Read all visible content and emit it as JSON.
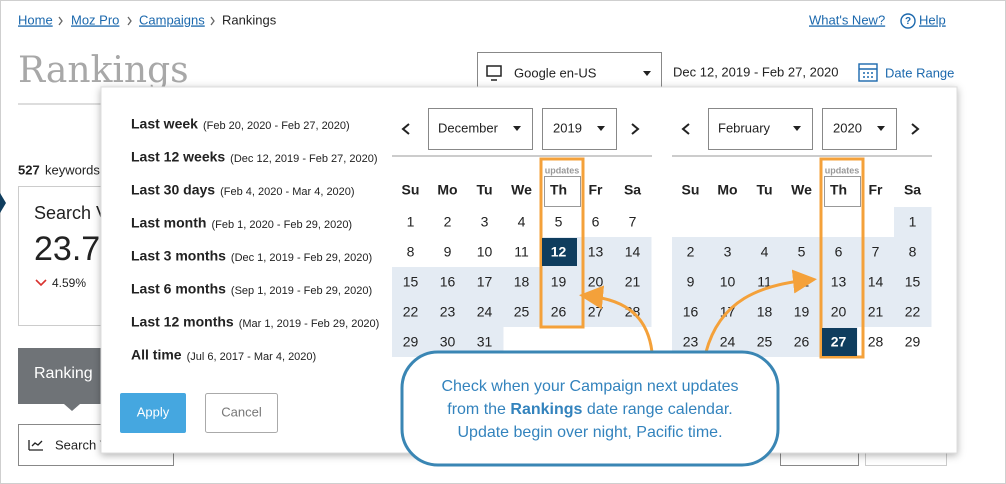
{
  "breadcrumb": [
    "Home",
    "Moz Pro",
    "Campaigns",
    "Rankings"
  ],
  "header_links": {
    "whats_new": "What's New?",
    "help": "Help"
  },
  "page_title": "Rankings",
  "toolbar": {
    "engine": "Google en-US",
    "date_range": "Dec 12, 2019 - Feb 27, 2020",
    "date_range_button": "Date Range"
  },
  "background": {
    "keywords_count": "527",
    "keywords_label": "keywords",
    "metric_card": {
      "title": "Search V",
      "value": "23.7",
      "change": "4.59%"
    },
    "tab": "Ranking",
    "button": "Search V"
  },
  "date_picker": {
    "presets": [
      {
        "name": "Last week",
        "range": "(Feb 20, 2020 - Feb 27, 2020)"
      },
      {
        "name": "Last 12 weeks",
        "range": "(Dec 12, 2019 - Feb 27, 2020)"
      },
      {
        "name": "Last 30 days",
        "range": "(Feb 4, 2020 - Mar 4, 2020)"
      },
      {
        "name": "Last month",
        "range": "(Feb 1, 2020 - Feb 29, 2020)"
      },
      {
        "name": "Last 3 months",
        "range": "(Dec 1, 2019 - Feb 29, 2020)"
      },
      {
        "name": "Last 6 months",
        "range": "(Sep 1, 2019 - Feb 29, 2020)"
      },
      {
        "name": "Last 12 months",
        "range": "(Mar 1, 2019 - Feb 29, 2020)"
      },
      {
        "name": "All time",
        "range": "(Jul 6, 2017 - Mar 4, 2020)"
      }
    ],
    "weekdays": [
      "Su",
      "Mo",
      "Tu",
      "We",
      "Th",
      "Fr",
      "Sa"
    ],
    "updates_label": "updates",
    "calendars": [
      {
        "month": "December",
        "year": "2019",
        "selected_day": 12,
        "weeks": [
          [
            1,
            2,
            3,
            4,
            5,
            6,
            7
          ],
          [
            8,
            9,
            10,
            11,
            12,
            13,
            14
          ],
          [
            15,
            16,
            17,
            18,
            19,
            20,
            21
          ],
          [
            22,
            23,
            24,
            25,
            26,
            27,
            28
          ],
          [
            29,
            30,
            31,
            null,
            null,
            null,
            null
          ]
        ]
      },
      {
        "month": "February",
        "year": "2020",
        "selected_day": 27,
        "weeks": [
          [
            null,
            null,
            null,
            null,
            null,
            null,
            1
          ],
          [
            2,
            3,
            4,
            5,
            6,
            7,
            8
          ],
          [
            9,
            10,
            11,
            12,
            13,
            14,
            15
          ],
          [
            16,
            17,
            18,
            19,
            20,
            21,
            22
          ],
          [
            23,
            24,
            25,
            26,
            27,
            28,
            29
          ]
        ]
      }
    ],
    "buttons": {
      "apply": "Apply",
      "cancel": "Cancel"
    }
  },
  "callout": {
    "line1": "Check when your Campaign next updates",
    "line2_before": "from the ",
    "line2_bold": "Rankings",
    "line2_after": " date range calendar.",
    "line3": "Update begin over night, Pacific time."
  }
}
